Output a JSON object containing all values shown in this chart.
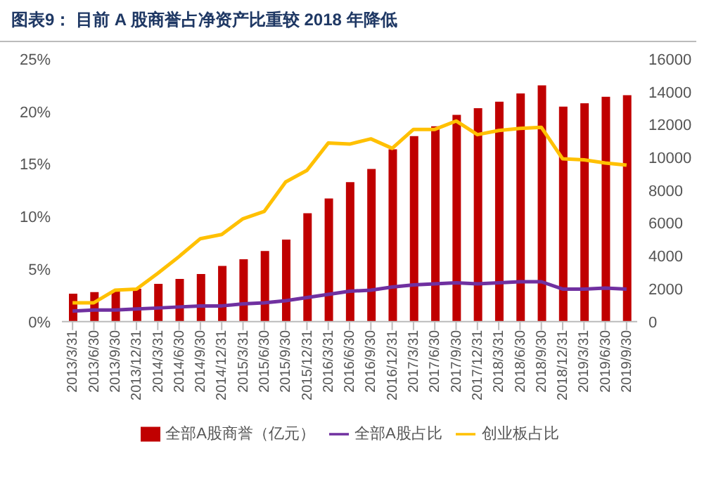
{
  "chart_data": {
    "type": "bar",
    "title": "图表9：  目前 A 股商誉占净资产比重较 2018 年降低",
    "categories": [
      "2013/3/31",
      "2013/6/30",
      "2013/9/30",
      "2013/12/31",
      "2014/3/31",
      "2014/6/30",
      "2014/9/30",
      "2014/12/31",
      "2015/3/31",
      "2015/6/30",
      "2015/9/30",
      "2015/12/31",
      "2016/3/31",
      "2016/6/30",
      "2016/9/30",
      "2016/12/31",
      "2017/3/31",
      "2017/6/30",
      "2017/9/30",
      "2017/12/31",
      "2018/3/31",
      "2018/6/30",
      "2018/9/30",
      "2018/12/31",
      "2019/3/31",
      "2019/6/30",
      "2019/9/30"
    ],
    "series": [
      {
        "name": "全部A股商誉（亿元）",
        "axis": "y2",
        "color": "#c00000",
        "values": [
          1700,
          1800,
          1900,
          2000,
          2300,
          2600,
          2900,
          3400,
          3800,
          4300,
          5000,
          6600,
          7500,
          8500,
          9300,
          10500,
          11300,
          11900,
          12600,
          13000,
          13400,
          13900,
          14400,
          13100,
          13300,
          13700,
          13800
        ]
      },
      {
        "name": "全部A股占比",
        "type": "line",
        "color": "#7030a0",
        "values": [
          1.0,
          1.1,
          1.1,
          1.2,
          1.3,
          1.4,
          1.5,
          1.5,
          1.7,
          1.8,
          2.0,
          2.3,
          2.6,
          2.9,
          3.0,
          3.3,
          3.5,
          3.6,
          3.7,
          3.6,
          3.7,
          3.8,
          3.8,
          3.1,
          3.1,
          3.2,
          3.1
        ]
      },
      {
        "name": "创业板占比",
        "type": "line",
        "color": "#ffc000",
        "values": [
          1.8,
          1.8,
          3.0,
          3.1,
          4.6,
          6.2,
          7.9,
          8.3,
          9.8,
          10.5,
          13.3,
          14.4,
          17.0,
          16.9,
          17.4,
          16.5,
          18.3,
          18.3,
          19.1,
          17.8,
          18.2,
          18.4,
          18.5,
          15.5,
          15.4,
          15.1,
          14.9
        ]
      }
    ],
    "ylim": [
      0,
      25
    ],
    "yticks": [
      {
        "value": 0,
        "label": "0%"
      },
      {
        "value": 5,
        "label": "5%"
      },
      {
        "value": 10,
        "label": "10%"
      },
      {
        "value": 15,
        "label": "15%"
      },
      {
        "value": 20,
        "label": "20%"
      },
      {
        "value": 25,
        "label": "25%"
      }
    ],
    "y2lim": [
      0,
      16000
    ],
    "y2ticks": [
      0,
      2000,
      4000,
      6000,
      8000,
      10000,
      12000,
      14000,
      16000
    ],
    "grid": false,
    "legend": "bottom",
    "marker": "none"
  }
}
